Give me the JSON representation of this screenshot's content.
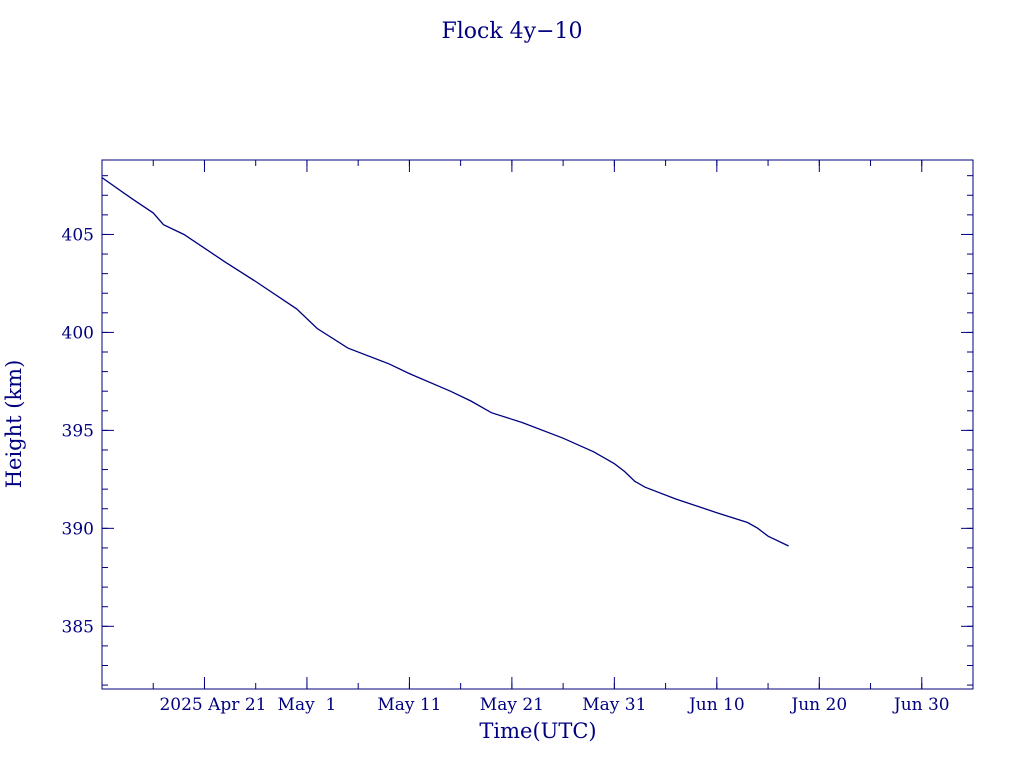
{
  "colors": {
    "ink": "#00007f",
    "background": "#ffffff"
  },
  "chart_data": {
    "type": "line",
    "title": "Flock 4y−10",
    "xlabel": "Time(UTC)",
    "ylabel": "Height (km)",
    "x_ticks": [
      {
        "date": "2025-04-21",
        "label": "2025 Apr 21"
      },
      {
        "date": "2025-05-01",
        "label": "May  1"
      },
      {
        "date": "2025-05-11",
        "label": "May 11"
      },
      {
        "date": "2025-05-21",
        "label": "May 21"
      },
      {
        "date": "2025-05-31",
        "label": "May 31"
      },
      {
        "date": "2025-06-10",
        "label": "Jun 10"
      },
      {
        "date": "2025-06-20",
        "label": "Jun 20"
      },
      {
        "date": "2025-06-30",
        "label": "Jun 30"
      }
    ],
    "y_ticks": [
      385,
      390,
      395,
      400,
      405
    ],
    "xlim": [
      "2025-04-11",
      "2025-07-05"
    ],
    "ylim": [
      381.8,
      408.8
    ],
    "grid": false,
    "series": [
      {
        "x": [
          "2025-04-11",
          "2025-04-14",
          "2025-04-16",
          "2025-04-17",
          "2025-04-19",
          "2025-04-21",
          "2025-04-23",
          "2025-04-26",
          "2025-04-30",
          "2025-05-02",
          "2025-05-05",
          "2025-05-09",
          "2025-05-11",
          "2025-05-15",
          "2025-05-17",
          "2025-05-19",
          "2025-05-22",
          "2025-05-26",
          "2025-05-29",
          "2025-05-31",
          "2025-06-01",
          "2025-06-02",
          "2025-06-03",
          "2025-06-06",
          "2025-06-10",
          "2025-06-13",
          "2025-06-14",
          "2025-06-15",
          "2025-06-17"
        ],
        "y": [
          407.9,
          406.8,
          406.1,
          405.5,
          405.0,
          404.3,
          403.6,
          402.6,
          401.2,
          400.2,
          399.2,
          398.4,
          397.9,
          397.0,
          396.5,
          395.9,
          395.4,
          394.6,
          393.9,
          393.3,
          392.9,
          392.4,
          392.1,
          391.5,
          390.8,
          390.3,
          390.0,
          389.6,
          389.1
        ]
      }
    ]
  }
}
